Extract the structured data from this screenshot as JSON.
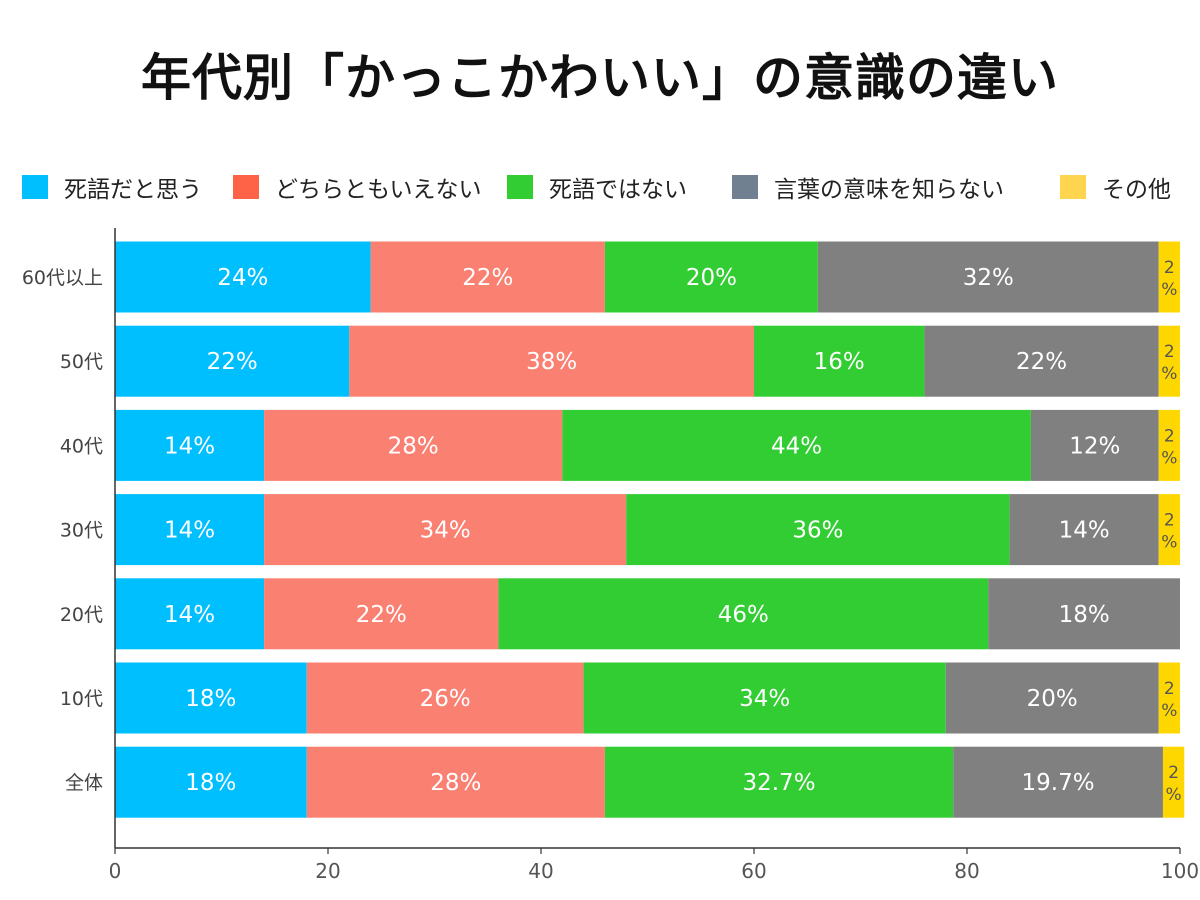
{
  "title": "年代別「かっこかわいい」の意識の違い",
  "chart_data": {
    "type": "bar",
    "orientation": "horizontal",
    "stacked": true,
    "title": "年代別「かっこかわいい」の意識の違い",
    "xlabel": "",
    "ylabel": "",
    "xlim": [
      0,
      100
    ],
    "x_ticks": [
      "0",
      "20",
      "40",
      "60",
      "80",
      "100"
    ],
    "legend_position": "top",
    "grid": false,
    "categories": [
      "60代以上",
      "50代",
      "40代",
      "30代",
      "20代",
      "10代",
      "全体"
    ],
    "series": [
      {
        "name": "死語だと思う",
        "color": "#00BFFF",
        "values": [
          24,
          22,
          14,
          14,
          14,
          18,
          18
        ],
        "labels": [
          "24%",
          "22%",
          "14%",
          "14%",
          "14%",
          "18%",
          "18%"
        ]
      },
      {
        "name": "どちらともいえない",
        "color": "#FA8072",
        "values": [
          22,
          38,
          28,
          34,
          22,
          26,
          28
        ],
        "labels": [
          "22%",
          "38%",
          "28%",
          "34%",
          "22%",
          "26%",
          "28%"
        ]
      },
      {
        "name": "死語ではない",
        "color": "#32CD32",
        "values": [
          20,
          16,
          44,
          36,
          46,
          34,
          32.7
        ],
        "labels": [
          "20%",
          "16%",
          "44%",
          "36%",
          "46%",
          "34%",
          "32.7%"
        ]
      },
      {
        "name": "言葉の意味を知らない",
        "color": "#808080",
        "values": [
          32,
          22,
          12,
          14,
          18,
          20,
          19.7
        ],
        "labels": [
          "32%",
          "22%",
          "12%",
          "14%",
          "18%",
          "20%",
          "19.7%"
        ]
      },
      {
        "name": "その他",
        "color": "#FFD700",
        "values": [
          2,
          2,
          2,
          2,
          0,
          2,
          2
        ],
        "labels": [
          "2%",
          "2%",
          "2%",
          "2%",
          "",
          "2%",
          "2%"
        ]
      }
    ]
  },
  "legend_colors": {
    "死語だと思う": "#00BFFF",
    "どちらともいえない": "#FF6347",
    "死語ではない": "#32CD32",
    "言葉の意味を知らない": "#708090",
    "その他": "#FFD54F"
  }
}
